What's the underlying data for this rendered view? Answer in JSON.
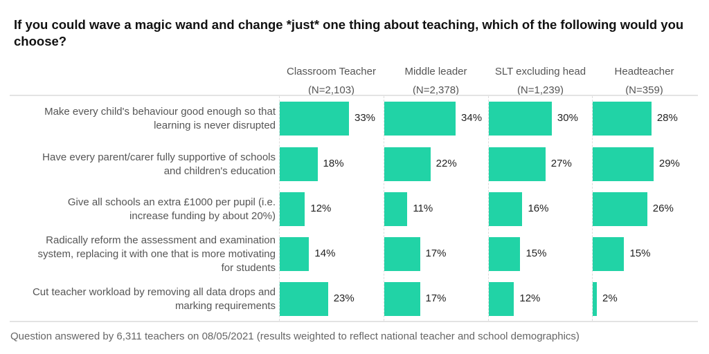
{
  "chart_data": {
    "type": "bar",
    "title": "If you could wave a magic wand and change *just* one thing about teaching, which of the following would you choose?",
    "columns": [
      {
        "name": "Classroom Teacher",
        "n": "(N=2,103)"
      },
      {
        "name": "Middle leader",
        "n": "(N=2,378)"
      },
      {
        "name": "SLT excluding head",
        "n": "(N=1,239)"
      },
      {
        "name": "Headteacher",
        "n": "(N=359)"
      }
    ],
    "categories": [
      "Make every child's behaviour good enough so that learning is never disrupted",
      "Have every parent/carer fully supportive of schools and children's education",
      "Give all schools an extra £1000 per pupil (i.e. increase funding by about 20%)",
      "Radically reform the assessment and examination system, replacing it with one that is more motivating for students",
      "Cut teacher workload by removing all data drops and marking requirements"
    ],
    "category_lines": [
      [
        "Make every child's behaviour good enough so that",
        "learning is never disrupted"
      ],
      [
        "Have every parent/carer fully supportive of schools",
        "and children's education"
      ],
      [
        "Give all schools an extra £1000 per pupil (i.e.",
        "increase funding by about 20%)"
      ],
      [
        "Radically reform the assessment and examination",
        "system, replacing it with one that is more motivating",
        "for students"
      ],
      [
        "Cut teacher workload by removing all data drops and",
        "marking requirements"
      ]
    ],
    "series": [
      {
        "name": "Classroom Teacher",
        "values": [
          33,
          18,
          12,
          14,
          23
        ]
      },
      {
        "name": "Middle leader",
        "values": [
          34,
          22,
          11,
          17,
          17
        ]
      },
      {
        "name": "SLT excluding head",
        "values": [
          30,
          27,
          16,
          15,
          12
        ]
      },
      {
        "name": "Headteacher",
        "values": [
          28,
          29,
          26,
          15,
          2
        ]
      }
    ],
    "labels": [
      [
        "33%",
        "18%",
        "12%",
        "14%",
        "23%"
      ],
      [
        "34%",
        "22%",
        "11%",
        "17%",
        "17%"
      ],
      [
        "30%",
        "27%",
        "16%",
        "15%",
        "12%"
      ],
      [
        "28%",
        "29%",
        "26%",
        "15%",
        "2%"
      ]
    ],
    "unit": "%",
    "xlim": [
      0,
      50
    ],
    "bar_color": "#21d3a6",
    "footer": "Question answered by 6,311 teachers on 08/05/2021 (results weighted to reflect national teacher and school demographics)"
  }
}
